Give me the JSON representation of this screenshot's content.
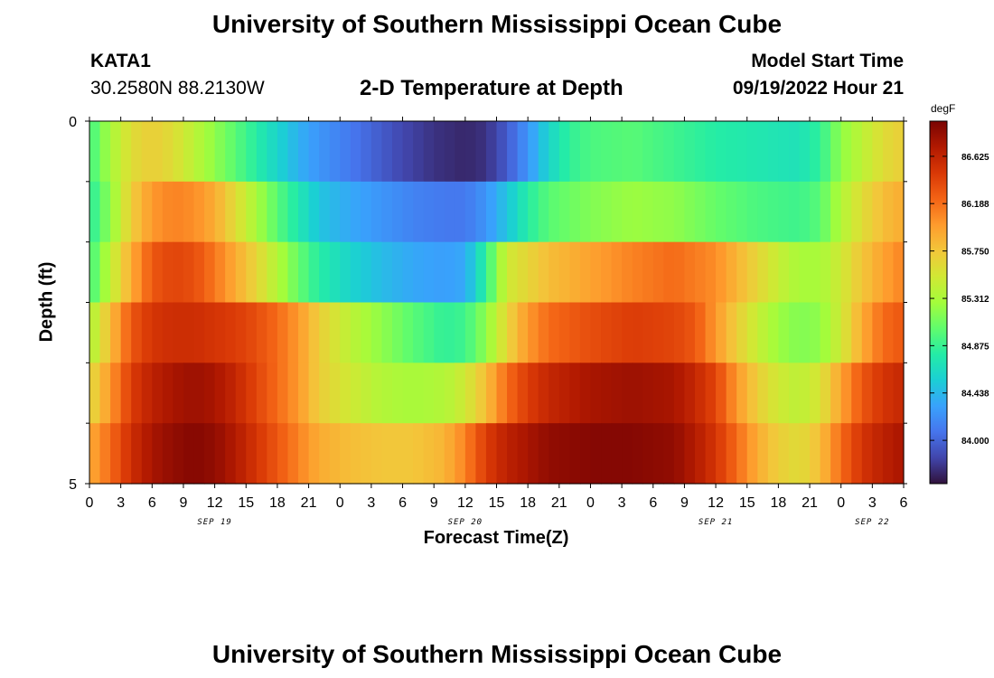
{
  "header": {
    "title": "University of Southern Mississippi Ocean Cube",
    "station": "KATA1",
    "coords": "30.2580N  88.2130W",
    "subtitle": "2-D Temperature at Depth",
    "start_label": "Model Start Time",
    "start_value": "09/19/2022 Hour 21"
  },
  "footer": {
    "title": "University of Southern Mississippi Ocean Cube"
  },
  "chart_data": {
    "type": "heatmap",
    "title": "2-D Temperature at Depth",
    "xlabel": "Forecast Time(Z)",
    "ylabel": "Depth (ft)",
    "unit": "degF",
    "x_start": "09/19/2022 Hour 0",
    "x_step_hours": 1,
    "x_hours_range": [
      0,
      78
    ],
    "x_tick_labels": [
      "0",
      "3",
      "6",
      "9",
      "12",
      "15",
      "18",
      "21",
      "0",
      "3",
      "6",
      "9",
      "12",
      "15",
      "18",
      "21",
      "0",
      "3",
      "6",
      "9",
      "12",
      "15",
      "18",
      "21",
      "0",
      "3",
      "6"
    ],
    "date_labels": [
      {
        "label": "SEP 19",
        "hour": 12
      },
      {
        "label": "SEP 20",
        "hour": 36
      },
      {
        "label": "SEP 21",
        "hour": 60
      },
      {
        "label": "SEP 22",
        "hour": 75
      }
    ],
    "y_tick_labels": [
      "0",
      "5"
    ],
    "ylim": [
      0,
      5
    ],
    "depth_layers_ft": [
      0,
      1,
      2,
      3,
      4,
      5
    ],
    "colorbar": {
      "min": 83.6,
      "max": 86.95,
      "ticks": [
        84.0,
        84.438,
        84.875,
        85.312,
        85.75,
        86.188,
        86.625
      ],
      "tick_labels": [
        "84.000",
        "84.438",
        "84.875",
        "85.312",
        "85.750",
        "86.188",
        "86.625"
      ]
    },
    "colors": [
      "#30123b",
      "#4145ab",
      "#4675ed",
      "#39a2fc",
      "#1bcfd4",
      "#24eca6",
      "#61fc6c",
      "#a4fc3b",
      "#d1e834",
      "#f3c63a",
      "#fe9b2d",
      "#f36315",
      "#d93806",
      "#b11901",
      "#7a0403"
    ],
    "profiles": [
      {
        "depth": 0,
        "points": [
          [
            0,
            84.9
          ],
          [
            2,
            85.3
          ],
          [
            4,
            85.6
          ],
          [
            6,
            85.7
          ],
          [
            8,
            85.6
          ],
          [
            10,
            85.4
          ],
          [
            12,
            85.2
          ],
          [
            14,
            85.0
          ],
          [
            16,
            84.8
          ],
          [
            18,
            84.6
          ],
          [
            20,
            84.4
          ],
          [
            22,
            84.25
          ],
          [
            26,
            84.05
          ],
          [
            30,
            83.85
          ],
          [
            33,
            83.75
          ],
          [
            36,
            83.7
          ],
          [
            38,
            83.75
          ],
          [
            40,
            83.95
          ],
          [
            42,
            84.25
          ],
          [
            44,
            84.6
          ],
          [
            46,
            84.85
          ],
          [
            48,
            84.95
          ],
          [
            52,
            85.0
          ],
          [
            56,
            84.9
          ],
          [
            60,
            84.8
          ],
          [
            64,
            84.75
          ],
          [
            68,
            84.7
          ],
          [
            70,
            84.85
          ],
          [
            72,
            85.2
          ],
          [
            74,
            85.4
          ],
          [
            76,
            85.6
          ],
          [
            78,
            85.7
          ]
        ]
      },
      {
        "depth": 1,
        "points": [
          [
            0,
            84.8
          ],
          [
            2,
            85.2
          ],
          [
            4,
            85.7
          ],
          [
            6,
            86.0
          ],
          [
            8,
            86.1
          ],
          [
            10,
            86.05
          ],
          [
            12,
            85.9
          ],
          [
            14,
            85.6
          ],
          [
            16,
            85.3
          ],
          [
            18,
            85.0
          ],
          [
            20,
            84.75
          ],
          [
            22,
            84.5
          ],
          [
            25,
            84.35
          ],
          [
            28,
            84.25
          ],
          [
            31,
            84.15
          ],
          [
            34,
            84.1
          ],
          [
            36,
            84.1
          ],
          [
            38,
            84.25
          ],
          [
            40,
            84.5
          ],
          [
            42,
            84.8
          ],
          [
            44,
            85.0
          ],
          [
            48,
            85.15
          ],
          [
            52,
            85.25
          ],
          [
            56,
            85.2
          ],
          [
            60,
            85.05
          ],
          [
            64,
            84.95
          ],
          [
            68,
            84.9
          ],
          [
            70,
            85.0
          ],
          [
            72,
            85.35
          ],
          [
            74,
            85.6
          ],
          [
            76,
            85.8
          ],
          [
            78,
            85.9
          ]
        ]
      },
      {
        "depth": 2,
        "points": [
          [
            0,
            84.9
          ],
          [
            2,
            85.4
          ],
          [
            4,
            85.9
          ],
          [
            6,
            86.3
          ],
          [
            8,
            86.4
          ],
          [
            10,
            86.35
          ],
          [
            12,
            86.15
          ],
          [
            14,
            85.9
          ],
          [
            16,
            85.65
          ],
          [
            18,
            85.35
          ],
          [
            20,
            85.05
          ],
          [
            22,
            84.8
          ],
          [
            25,
            84.6
          ],
          [
            28,
            84.45
          ],
          [
            31,
            84.35
          ],
          [
            34,
            84.3
          ],
          [
            36,
            84.35
          ],
          [
            38,
            84.85
          ],
          [
            40,
            85.5
          ],
          [
            44,
            85.8
          ],
          [
            48,
            85.95
          ],
          [
            52,
            86.1
          ],
          [
            56,
            86.2
          ],
          [
            60,
            86.05
          ],
          [
            62,
            85.85
          ],
          [
            64,
            85.65
          ],
          [
            66,
            85.45
          ],
          [
            68,
            85.3
          ],
          [
            70,
            85.3
          ],
          [
            72,
            85.5
          ],
          [
            74,
            85.75
          ],
          [
            76,
            85.95
          ],
          [
            78,
            86.1
          ]
        ]
      },
      {
        "depth": 3,
        "points": [
          [
            0,
            85.3
          ],
          [
            2,
            85.8
          ],
          [
            4,
            86.3
          ],
          [
            6,
            86.5
          ],
          [
            8,
            86.55
          ],
          [
            10,
            86.55
          ],
          [
            12,
            86.5
          ],
          [
            14,
            86.45
          ],
          [
            16,
            86.35
          ],
          [
            18,
            86.2
          ],
          [
            20,
            86.0
          ],
          [
            22,
            85.7
          ],
          [
            25,
            85.4
          ],
          [
            28,
            85.2
          ],
          [
            31,
            85.0
          ],
          [
            34,
            84.85
          ],
          [
            36,
            84.9
          ],
          [
            38,
            85.2
          ],
          [
            40,
            85.65
          ],
          [
            42,
            86.0
          ],
          [
            44,
            86.2
          ],
          [
            48,
            86.35
          ],
          [
            52,
            86.45
          ],
          [
            56,
            86.4
          ],
          [
            58,
            86.3
          ],
          [
            60,
            86.0
          ],
          [
            62,
            85.7
          ],
          [
            64,
            85.45
          ],
          [
            66,
            85.25
          ],
          [
            68,
            85.15
          ],
          [
            70,
            85.2
          ],
          [
            72,
            85.5
          ],
          [
            74,
            85.9
          ],
          [
            76,
            86.2
          ],
          [
            78,
            86.3
          ]
        ]
      },
      {
        "depth": 4,
        "points": [
          [
            0,
            85.6
          ],
          [
            2,
            86.0
          ],
          [
            4,
            86.45
          ],
          [
            6,
            86.65
          ],
          [
            8,
            86.75
          ],
          [
            10,
            86.8
          ],
          [
            12,
            86.75
          ],
          [
            14,
            86.6
          ],
          [
            16,
            86.4
          ],
          [
            18,
            86.2
          ],
          [
            20,
            86.0
          ],
          [
            22,
            85.7
          ],
          [
            25,
            85.5
          ],
          [
            28,
            85.35
          ],
          [
            31,
            85.3
          ],
          [
            34,
            85.35
          ],
          [
            36,
            85.5
          ],
          [
            38,
            85.8
          ],
          [
            40,
            86.2
          ],
          [
            42,
            86.45
          ],
          [
            44,
            86.6
          ],
          [
            48,
            86.75
          ],
          [
            52,
            86.8
          ],
          [
            56,
            86.75
          ],
          [
            58,
            86.6
          ],
          [
            60,
            86.4
          ],
          [
            62,
            86.0
          ],
          [
            64,
            85.7
          ],
          [
            66,
            85.5
          ],
          [
            68,
            85.4
          ],
          [
            70,
            85.55
          ],
          [
            72,
            85.95
          ],
          [
            74,
            86.3
          ],
          [
            76,
            86.5
          ],
          [
            78,
            86.6
          ]
        ]
      },
      {
        "depth": 5,
        "points": [
          [
            0,
            85.9
          ],
          [
            2,
            86.2
          ],
          [
            4,
            86.55
          ],
          [
            6,
            86.75
          ],
          [
            8,
            86.85
          ],
          [
            10,
            86.9
          ],
          [
            12,
            86.85
          ],
          [
            14,
            86.7
          ],
          [
            16,
            86.5
          ],
          [
            18,
            86.3
          ],
          [
            20,
            86.1
          ],
          [
            22,
            85.9
          ],
          [
            25,
            85.8
          ],
          [
            28,
            85.75
          ],
          [
            31,
            85.75
          ],
          [
            34,
            85.85
          ],
          [
            36,
            86.1
          ],
          [
            38,
            86.45
          ],
          [
            40,
            86.65
          ],
          [
            42,
            86.75
          ],
          [
            44,
            86.85
          ],
          [
            48,
            86.9
          ],
          [
            52,
            86.9
          ],
          [
            56,
            86.85
          ],
          [
            58,
            86.7
          ],
          [
            60,
            86.5
          ],
          [
            62,
            86.2
          ],
          [
            64,
            85.9
          ],
          [
            66,
            85.7
          ],
          [
            68,
            85.6
          ],
          [
            70,
            85.8
          ],
          [
            72,
            86.2
          ],
          [
            74,
            86.5
          ],
          [
            76,
            86.65
          ],
          [
            78,
            86.75
          ]
        ]
      }
    ]
  }
}
